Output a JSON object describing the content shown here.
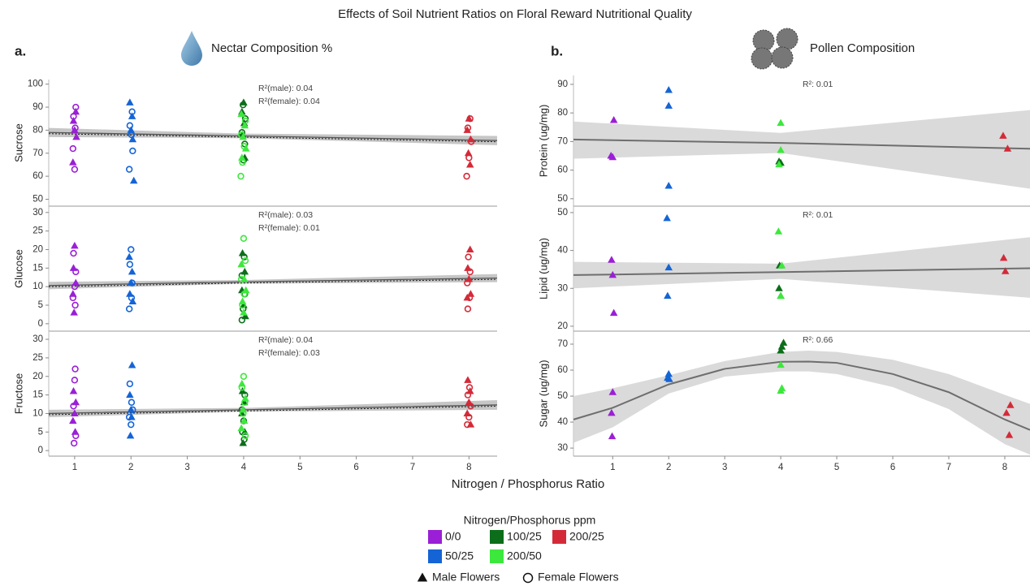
{
  "title": "Effects of Soil Nutrient Ratios on Floral Reward Nutritional Quality",
  "x_label": "Nitrogen / Phosphorus Ratio",
  "panels": [
    {
      "label": "a.",
      "heading": "Nectar Composition %"
    },
    {
      "label": "b.",
      "heading": "Pollen Composition"
    }
  ],
  "legend": {
    "title": "Nitrogen/Phosphorus ppm",
    "treatments": [
      {
        "name": "0/0",
        "color": "#9a1fd6"
      },
      {
        "name": "50/25",
        "color": "#1464d6"
      },
      {
        "name": "100/25",
        "color": "#0c6e1a"
      },
      {
        "name": "200/50",
        "color": "#3de83d"
      },
      {
        "name": "200/25",
        "color": "#d42a38"
      }
    ],
    "markers": [
      {
        "label": "Male Flowers",
        "marker": "triangle"
      },
      {
        "label": "Female Flowers",
        "marker": "circle"
      }
    ]
  },
  "chart_data": [
    {
      "type": "scatter",
      "y_label": "Sucrose",
      "xlim": [
        0.54,
        8.5
      ],
      "ylim": [
        47,
        102
      ],
      "yticks": [
        50,
        60,
        70,
        80,
        90,
        100
      ],
      "annotations": [
        "R²(male): 0.04",
        "R²(female): 0.04"
      ],
      "fit": {
        "x": [
          0.54,
          4,
          8.5
        ],
        "y": [
          79,
          77.5,
          75.5
        ],
        "lower": [
          77,
          76.5,
          73.5
        ],
        "upper": [
          81,
          78.5,
          77.5
        ]
      },
      "series": [
        {
          "color": "#9a1fd6",
          "marker": "triangle",
          "x": [
            1.02,
            0.98,
            1.0,
            1.03,
            0.97
          ],
          "values": [
            88,
            84,
            80,
            77,
            66
          ]
        },
        {
          "color": "#9a1fd6",
          "marker": "circle",
          "x": [
            1.02,
            0.98,
            1.01,
            0.97,
            1.0
          ],
          "values": [
            90,
            86,
            81,
            72,
            63
          ]
        },
        {
          "color": "#1464d6",
          "marker": "triangle",
          "x": [
            1.98,
            2.02,
            2.0,
            2.03,
            2.05
          ],
          "values": [
            92,
            86,
            80,
            76,
            58
          ]
        },
        {
          "color": "#1464d6",
          "marker": "circle",
          "x": [
            2.02,
            1.98,
            2.01,
            2.03,
            1.97
          ],
          "values": [
            88,
            82,
            78,
            71,
            63
          ]
        },
        {
          "color": "#0c6e1a",
          "marker": "triangle",
          "x": [
            4.0,
            3.97,
            4.01,
            3.98,
            4.02
          ],
          "values": [
            92,
            88,
            83,
            78,
            68
          ]
        },
        {
          "color": "#0c6e1a",
          "marker": "circle",
          "x": [
            3.99,
            4.03,
            3.97,
            4.02,
            4.0
          ],
          "values": [
            91,
            85,
            79,
            74,
            67
          ]
        },
        {
          "color": "#3de83d",
          "marker": "triangle",
          "x": [
            3.96,
            4.02,
            3.99,
            4.04,
            3.97
          ],
          "values": [
            87,
            82,
            77,
            72,
            68
          ]
        },
        {
          "color": "#3de83d",
          "marker": "circle",
          "x": [
            4.03,
            3.96,
            4.01,
            3.98,
            3.95
          ],
          "values": [
            84,
            78,
            73,
            66,
            60
          ]
        },
        {
          "color": "#d42a38",
          "marker": "triangle",
          "x": [
            8.0,
            7.97,
            8.03,
            7.99,
            8.02
          ],
          "values": [
            85,
            80,
            76,
            70,
            65
          ]
        },
        {
          "color": "#d42a38",
          "marker": "circle",
          "x": [
            8.02,
            7.98,
            8.04,
            8.0,
            7.96
          ],
          "values": [
            85,
            81,
            75,
            68,
            60
          ]
        }
      ]
    },
    {
      "type": "scatter",
      "y_label": "Glucose",
      "xlim": [
        0.54,
        8.5
      ],
      "ylim": [
        -2,
        31.7
      ],
      "yticks": [
        0,
        5,
        10,
        15,
        20,
        25,
        30
      ],
      "annotations": [
        "R²(male): 0.03",
        "R²(female): 0.01"
      ],
      "fit": {
        "x": [
          0.54,
          4,
          8.5
        ],
        "y": [
          10.3,
          11.3,
          12.3
        ],
        "lower": [
          9.3,
          10.8,
          11.2
        ],
        "upper": [
          11.3,
          11.8,
          13.4
        ]
      },
      "series": [
        {
          "color": "#9a1fd6",
          "marker": "triangle",
          "x": [
            1.0,
            0.98,
            1.02,
            0.97,
            0.99
          ],
          "values": [
            21,
            15,
            11,
            8,
            3
          ]
        },
        {
          "color": "#9a1fd6",
          "marker": "circle",
          "x": [
            0.98,
            1.02,
            1.0,
            0.97,
            1.01
          ],
          "values": [
            19,
            14,
            10,
            7,
            5
          ]
        },
        {
          "color": "#1464d6",
          "marker": "triangle",
          "x": [
            1.97,
            2.02,
            2.0,
            1.98,
            2.03
          ],
          "values": [
            18,
            14,
            11,
            8,
            6
          ]
        },
        {
          "color": "#1464d6",
          "marker": "circle",
          "x": [
            2.0,
            1.98,
            2.02,
            2.01,
            1.97
          ],
          "values": [
            20,
            16,
            11,
            7,
            4
          ]
        },
        {
          "color": "#0c6e1a",
          "marker": "triangle",
          "x": [
            3.98,
            4.02,
            3.97,
            4.0,
            4.03
          ],
          "values": [
            19,
            14,
            9,
            5,
            2
          ]
        },
        {
          "color": "#0c6e1a",
          "marker": "circle",
          "x": [
            4.01,
            3.97,
            4.02,
            3.99,
            3.97
          ],
          "values": [
            18,
            13,
            8,
            4,
            1
          ]
        },
        {
          "color": "#3de83d",
          "marker": "triangle",
          "x": [
            3.96,
            4.01,
            4.04,
            3.98,
            4.0
          ],
          "values": [
            16,
            12,
            9,
            6,
            3
          ]
        },
        {
          "color": "#3de83d",
          "marker": "circle",
          "x": [
            4.0,
            4.03,
            3.96,
            4.01,
            3.98
          ],
          "values": [
            23,
            17,
            12,
            8,
            5
          ]
        },
        {
          "color": "#d42a38",
          "marker": "triangle",
          "x": [
            8.02,
            7.98,
            8.0,
            8.03,
            7.97
          ],
          "values": [
            20,
            15,
            12,
            8,
            7
          ]
        },
        {
          "color": "#d42a38",
          "marker": "circle",
          "x": [
            7.99,
            8.02,
            7.97,
            8.01,
            7.98
          ],
          "values": [
            18,
            14,
            11,
            7,
            4
          ]
        }
      ]
    },
    {
      "type": "scatter",
      "y_label": "Fructose",
      "xlim": [
        0.54,
        8.5
      ],
      "ylim": [
        -1.5,
        32.2
      ],
      "yticks": [
        0,
        5,
        10,
        15,
        20,
        25,
        30
      ],
      "xticks": [
        1,
        2,
        3,
        4,
        5,
        6,
        7,
        8
      ],
      "annotations": [
        "R²(male): 0.04",
        "R²(female): 0.03"
      ],
      "fit": {
        "x": [
          0.54,
          4,
          8.5
        ],
        "y": [
          10,
          11,
          12.3
        ],
        "lower": [
          9,
          10.5,
          11
        ],
        "upper": [
          11,
          11.5,
          13.6
        ]
      },
      "series": [
        {
          "color": "#9a1fd6",
          "marker": "triangle",
          "x": [
            0.98,
            1.02,
            1.0,
            0.97,
            1.01
          ],
          "values": [
            16,
            13,
            10,
            8,
            5
          ]
        },
        {
          "color": "#9a1fd6",
          "marker": "circle",
          "x": [
            1.01,
            1.0,
            0.98,
            1.02,
            0.99
          ],
          "values": [
            22,
            19,
            12,
            4,
            2
          ]
        },
        {
          "color": "#1464d6",
          "marker": "triangle",
          "x": [
            2.02,
            1.98,
            2.0,
            2.01,
            1.99
          ],
          "values": [
            23,
            15,
            11,
            9,
            4
          ]
        },
        {
          "color": "#1464d6",
          "marker": "circle",
          "x": [
            1.98,
            2.01,
            2.03,
            1.97,
            2.0
          ],
          "values": [
            18,
            13,
            11,
            9,
            7
          ]
        },
        {
          "color": "#0c6e1a",
          "marker": "triangle",
          "x": [
            3.98,
            4.01,
            3.97,
            4.02,
            3.99
          ],
          "values": [
            16,
            13,
            10,
            5,
            2
          ]
        },
        {
          "color": "#0c6e1a",
          "marker": "circle",
          "x": [
            4.02,
            3.97,
            4.0,
            3.98,
            4.01
          ],
          "values": [
            15,
            11,
            8,
            5,
            3
          ]
        },
        {
          "color": "#3de83d",
          "marker": "triangle",
          "x": [
            3.97,
            4.03,
            3.99,
            4.01,
            3.96
          ],
          "values": [
            18,
            14,
            11,
            8,
            6
          ]
        },
        {
          "color": "#3de83d",
          "marker": "circle",
          "x": [
            4.0,
            3.97,
            4.02,
            3.99,
            4.03
          ],
          "values": [
            20,
            17,
            13,
            10,
            4
          ]
        },
        {
          "color": "#d42a38",
          "marker": "triangle",
          "x": [
            7.98,
            8.02,
            8.0,
            7.97,
            8.03
          ],
          "values": [
            19,
            16,
            13,
            10,
            7
          ]
        },
        {
          "color": "#d42a38",
          "marker": "circle",
          "x": [
            8.01,
            7.98,
            8.03,
            8.0,
            7.97
          ],
          "values": [
            17,
            15,
            12,
            9,
            7
          ]
        }
      ]
    },
    {
      "type": "scatter",
      "y_label": "Protein (ug/mg)",
      "xlim": [
        0.3,
        8.45
      ],
      "ylim": [
        47.4,
        93.1
      ],
      "yticks": [
        50,
        60,
        70,
        80,
        90
      ],
      "annotations": [
        "R²: 0.01"
      ],
      "fit": {
        "x": [
          0.3,
          4,
          8.45
        ],
        "y": [
          70.7,
          69.5,
          67.5
        ],
        "lower": [
          64,
          66,
          53.5
        ],
        "upper": [
          77,
          73,
          81
        ]
      },
      "series": [
        {
          "color": "#9a1fd6",
          "marker": "triangle",
          "x": [
            1.02,
            0.97,
            1.0
          ],
          "values": [
            77.5,
            65,
            64.5
          ]
        },
        {
          "color": "#1464d6",
          "marker": "triangle",
          "x": [
            2.0,
            2.0,
            2.0
          ],
          "values": [
            88,
            82.5,
            54.5
          ]
        },
        {
          "color": "#0c6e1a",
          "marker": "triangle",
          "x": [
            3.97,
            4.0
          ],
          "values": [
            63,
            62.5
          ]
        },
        {
          "color": "#3de83d",
          "marker": "triangle",
          "x": [
            4.0,
            4.0,
            3.97
          ],
          "values": [
            76.5,
            67,
            62
          ]
        },
        {
          "color": "#d42a38",
          "marker": "triangle",
          "x": [
            7.97,
            8.05
          ],
          "values": [
            72,
            67.5
          ]
        }
      ]
    },
    {
      "type": "scatter",
      "y_label": "Lipid (ug/mg)",
      "xlim": [
        0.3,
        8.45
      ],
      "ylim": [
        18.7,
        51.7
      ],
      "yticks": [
        20,
        30,
        40,
        50
      ],
      "annotations": [
        "R²: 0.01"
      ],
      "fit": {
        "x": [
          0.3,
          4,
          8.45
        ],
        "y": [
          33.5,
          34.3,
          35.3
        ],
        "lower": [
          30,
          32.5,
          27.5
        ],
        "upper": [
          37,
          36.5,
          43.5
        ]
      },
      "series": [
        {
          "color": "#9a1fd6",
          "marker": "triangle",
          "x": [
            0.98,
            1.0,
            1.02
          ],
          "values": [
            37.5,
            33.5,
            23.5
          ]
        },
        {
          "color": "#1464d6",
          "marker": "triangle",
          "x": [
            1.97,
            2.0,
            1.98
          ],
          "values": [
            48.5,
            35.5,
            28
          ]
        },
        {
          "color": "#0c6e1a",
          "marker": "triangle",
          "x": [
            3.98,
            3.97,
            4.0
          ],
          "values": [
            36,
            30,
            28
          ]
        },
        {
          "color": "#3de83d",
          "marker": "triangle",
          "x": [
            3.96,
            4.02,
            4.0
          ],
          "values": [
            45,
            36,
            28
          ]
        },
        {
          "color": "#d42a38",
          "marker": "triangle",
          "x": [
            7.98,
            8.01
          ],
          "values": [
            38,
            34.5
          ]
        }
      ]
    },
    {
      "type": "scatter",
      "y_label": "Sugar (ug/mg)",
      "xlim": [
        0.3,
        8.45
      ],
      "ylim": [
        26.9,
        75
      ],
      "yticks": [
        30,
        40,
        50,
        60,
        70
      ],
      "xticks": [
        1,
        2,
        3,
        4,
        5,
        6,
        7,
        8
      ],
      "annotations": [
        "R²: 0.66"
      ],
      "fit": {
        "x": [
          0.3,
          1,
          2,
          3,
          4,
          4.5,
          5,
          6,
          7,
          8,
          8.45
        ],
        "y": [
          41,
          45.5,
          54.5,
          60.5,
          63.2,
          63.3,
          62.8,
          58.5,
          51.5,
          41,
          37
        ],
        "lower": [
          32,
          38,
          51,
          57.5,
          59.5,
          59.5,
          58.5,
          53.5,
          45,
          31.5,
          27.5
        ],
        "upper": [
          50,
          53,
          58,
          63.5,
          67,
          67.5,
          67,
          64,
          58.5,
          50.5,
          47
        ]
      },
      "series": [
        {
          "color": "#9a1fd6",
          "marker": "triangle",
          "x": [
            1.0,
            0.98,
            0.99
          ],
          "values": [
            51.5,
            43.5,
            34.5
          ]
        },
        {
          "color": "#1464d6",
          "marker": "triangle",
          "x": [
            2.0,
            1.98,
            2.01
          ],
          "values": [
            58.5,
            57,
            56.5
          ]
        },
        {
          "color": "#0c6e1a",
          "marker": "triangle",
          "x": [
            4.05,
            4.02,
            4.0
          ],
          "values": [
            70.5,
            69,
            67.5
          ]
        },
        {
          "color": "#3de83d",
          "marker": "triangle",
          "x": [
            4.0,
            4.02,
            4.0
          ],
          "values": [
            62,
            53,
            52
          ]
        },
        {
          "color": "#d42a38",
          "marker": "triangle",
          "x": [
            8.1,
            8.03,
            8.08
          ],
          "values": [
            46.5,
            43.5,
            35
          ]
        }
      ]
    }
  ]
}
